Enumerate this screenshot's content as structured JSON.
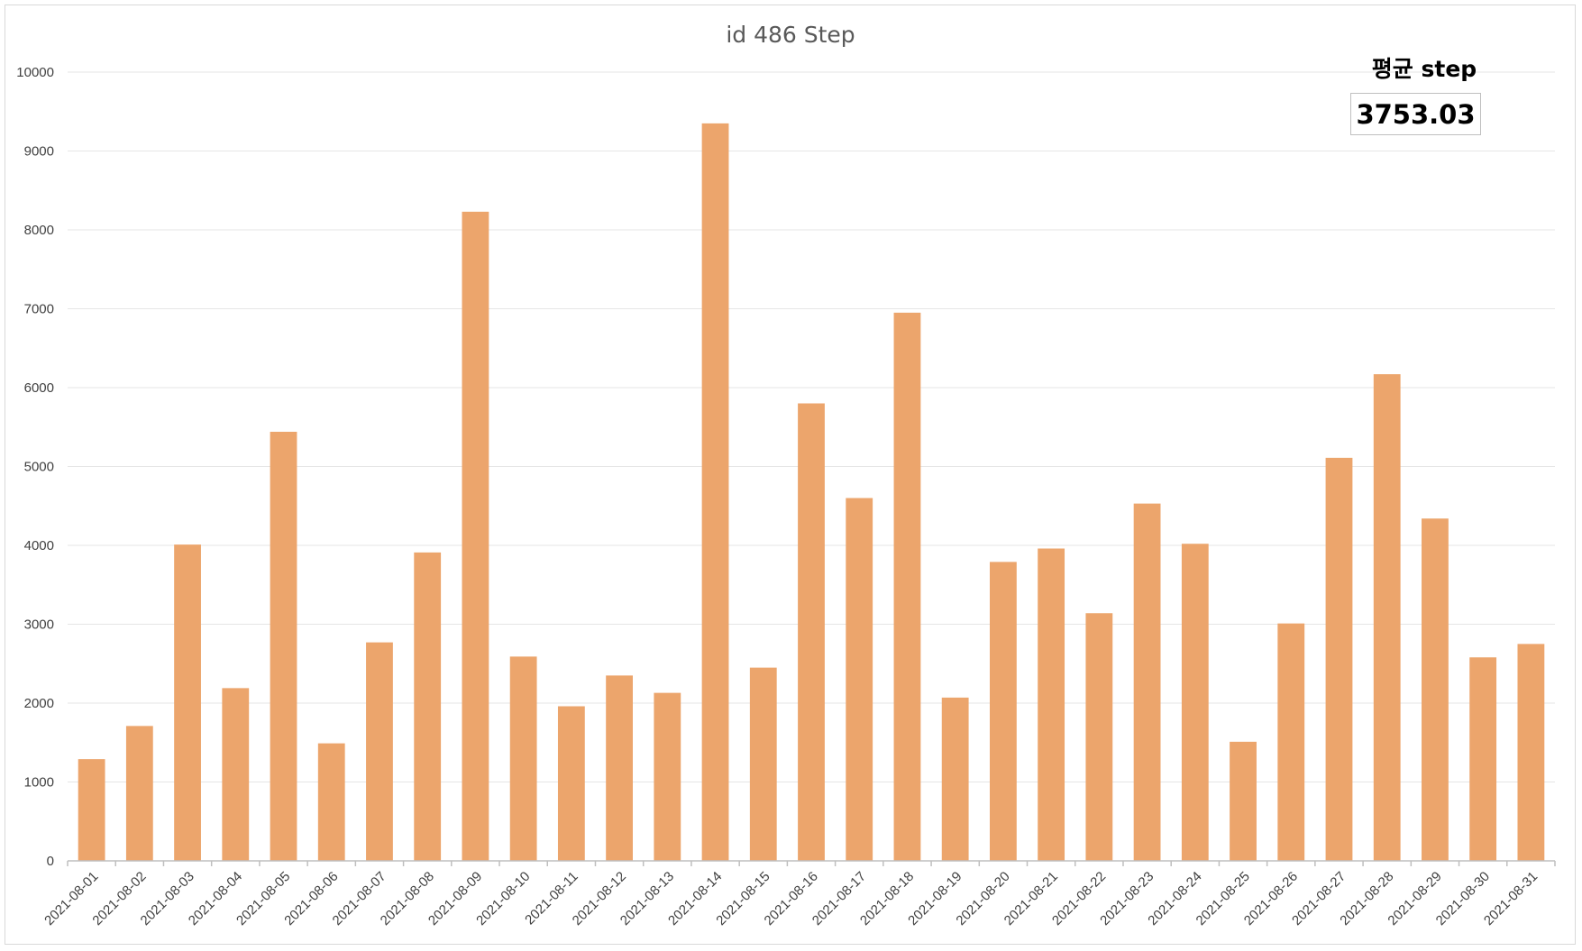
{
  "chart_data": {
    "type": "bar",
    "title": "id 486 Step",
    "xlabel": "",
    "ylabel": "",
    "ylim": [
      0,
      10000
    ],
    "yticks": [
      0,
      1000,
      2000,
      3000,
      4000,
      5000,
      6000,
      7000,
      8000,
      9000,
      10000
    ],
    "grid": true,
    "bar_color": "#ECA56C",
    "categories": [
      "2021-08-01",
      "2021-08-02",
      "2021-08-03",
      "2021-08-04",
      "2021-08-05",
      "2021-08-06",
      "2021-08-07",
      "2021-08-08",
      "2021-08-09",
      "2021-08-10",
      "2021-08-11",
      "2021-08-12",
      "2021-08-13",
      "2021-08-14",
      "2021-08-15",
      "2021-08-16",
      "2021-08-17",
      "2021-08-18",
      "2021-08-19",
      "2021-08-20",
      "2021-08-21",
      "2021-08-22",
      "2021-08-23",
      "2021-08-24",
      "2021-08-25",
      "2021-08-26",
      "2021-08-27",
      "2021-08-28",
      "2021-08-29",
      "2021-08-30",
      "2021-08-31"
    ],
    "values": [
      1290,
      1710,
      4010,
      2190,
      5440,
      1490,
      2770,
      3910,
      8230,
      2590,
      1960,
      2350,
      2130,
      9350,
      2450,
      5800,
      4600,
      6950,
      2070,
      3790,
      3960,
      3140,
      4530,
      4020,
      1510,
      3010,
      5110,
      6170,
      4340,
      2580,
      2750
    ]
  },
  "annotation": {
    "label": "평균 step",
    "value": "3753.03"
  }
}
